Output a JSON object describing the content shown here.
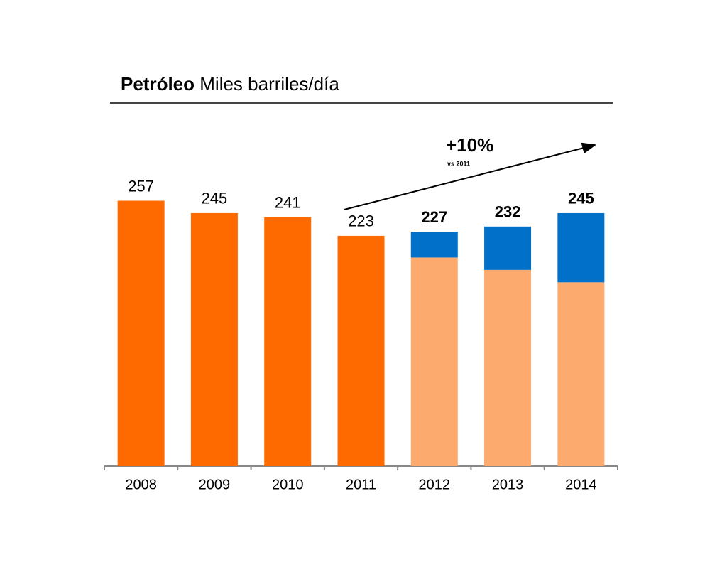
{
  "chart_data": {
    "type": "stacked_bar",
    "title": "Petróleo",
    "subtitle": "Miles barriles/día",
    "annotation": "+10%",
    "annotation_note": "vs 2011",
    "categories": [
      "2008",
      "2009",
      "2010",
      "2011",
      "2012",
      "2013",
      "2014"
    ],
    "series": [
      {
        "colors": [
          "#ff6a00",
          "#ff6a00",
          "#ff6a00",
          "#ff6a00",
          "#fcaa6e",
          "#fcaa6e",
          "#fcaa6e"
        ],
        "values": [
          257,
          245,
          241,
          223,
          202,
          190,
          178
        ]
      },
      {
        "color": "#0070c8",
        "values": [
          null,
          null,
          null,
          null,
          25,
          42,
          67
        ]
      }
    ],
    "totals": [
      257,
      245,
      241,
      223,
      227,
      232,
      245
    ],
    "ylim": [
      0,
      300
    ],
    "grid": false
  }
}
